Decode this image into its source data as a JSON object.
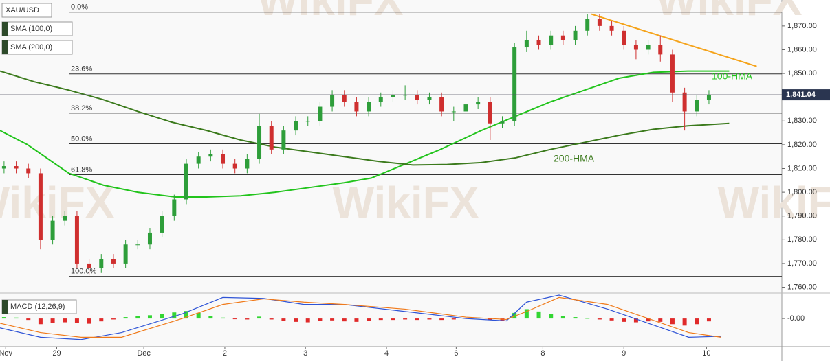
{
  "chart_data": {
    "type": "candlestick",
    "symbol": "XAU/USD",
    "indicators": [
      "SMA (100,0)",
      "SMA (200,0)"
    ],
    "watermark": "WikiFX",
    "xlim": [
      0,
      193
    ],
    "xticks": [
      {
        "value": 1.4,
        "label": "Nov"
      },
      {
        "value": 14,
        "label": "29"
      },
      {
        "value": 35.5,
        "label": "Dec"
      },
      {
        "value": 55.5,
        "label": "2"
      },
      {
        "value": 75.4,
        "label": "3"
      },
      {
        "value": 95.4,
        "label": "4"
      },
      {
        "value": 112.6,
        "label": "6"
      },
      {
        "value": 134,
        "label": "8"
      },
      {
        "value": 154,
        "label": "9"
      },
      {
        "value": 174.4,
        "label": "10"
      }
    ],
    "ylim": [
      1759,
      1879.5
    ],
    "yticks": [
      {
        "value": 1760,
        "label": "1,760.00"
      },
      {
        "value": 1770,
        "label": "1,770.00"
      },
      {
        "value": 1780,
        "label": "1,780.00"
      },
      {
        "value": 1790,
        "label": "1,790.00"
      },
      {
        "value": 1800,
        "label": "1,800.00"
      },
      {
        "value": 1810,
        "label": "1,810.00"
      },
      {
        "value": 1820,
        "label": "1,820.00"
      },
      {
        "value": 1830,
        "label": "1,830.00"
      },
      {
        "value": 1840,
        "label": "1,840.00"
      },
      {
        "value": 1850,
        "label": "1,850.00"
      },
      {
        "value": 1860,
        "label": "1,860.00"
      },
      {
        "value": 1870,
        "label": "1,870.00"
      }
    ],
    "candles": {
      "up_color": "#2e9e3a",
      "down_color": "#cf2f2f",
      "x": [
        1,
        4,
        7,
        10,
        13,
        16,
        19,
        22,
        25,
        28,
        31,
        34,
        37,
        40,
        43,
        46,
        49,
        52,
        55,
        58,
        61,
        64,
        67,
        70,
        73,
        76,
        79,
        82,
        85,
        88,
        91,
        94,
        97,
        100,
        103,
        106,
        109,
        112,
        115,
        118,
        121,
        124,
        127,
        130,
        133,
        136,
        139,
        142,
        145,
        148,
        151,
        154,
        157,
        160,
        163,
        166,
        169,
        172,
        175
      ],
      "open": [
        1810,
        1811,
        1810,
        1808,
        1780,
        1788,
        1790,
        1770,
        1768,
        1772,
        1770,
        1778,
        1778,
        1783,
        1790,
        1797,
        1812,
        1815,
        1816,
        1812,
        1810,
        1814,
        1828,
        1818,
        1826,
        1830,
        1830,
        1836,
        1841,
        1838,
        1834,
        1838,
        1840,
        1841,
        1841,
        1839,
        1840,
        1834,
        1834,
        1837,
        1838,
        1829,
        1830,
        1861,
        1864,
        1862,
        1866,
        1864,
        1868,
        1873,
        1870,
        1868,
        1862,
        1860,
        1862,
        1858,
        1842,
        1834,
        1839
      ],
      "high": [
        1813,
        1813,
        1812,
        1810,
        1790,
        1792,
        1792,
        1772,
        1774,
        1774,
        1780,
        1780,
        1785,
        1792,
        1799,
        1814,
        1817,
        1818,
        1818,
        1814,
        1816,
        1833,
        1830,
        1828,
        1832,
        1832,
        1838,
        1843,
        1843,
        1840,
        1840,
        1842,
        1843,
        1845,
        1843,
        1842,
        1842,
        1836,
        1839,
        1840,
        1840,
        1832,
        1863,
        1868,
        1866,
        1868,
        1868,
        1870,
        1875,
        1875,
        1872,
        1870,
        1864,
        1864,
        1866,
        1860,
        1844,
        1841,
        1843
      ],
      "low": [
        1808,
        1808,
        1806,
        1776,
        1778,
        1786,
        1768,
        1765,
        1766,
        1768,
        1768,
        1776,
        1776,
        1781,
        1788,
        1795,
        1810,
        1813,
        1810,
        1808,
        1808,
        1812,
        1816,
        1816,
        1824,
        1828,
        1828,
        1834,
        1836,
        1832,
        1832,
        1836,
        1838,
        1839,
        1837,
        1837,
        1832,
        1830,
        1832,
        1835,
        1822,
        1827,
        1828,
        1859,
        1860,
        1860,
        1862,
        1862,
        1866,
        1868,
        1866,
        1860,
        1856,
        1858,
        1855,
        1838,
        1826,
        1832,
        1837
      ],
      "close": [
        1811,
        1810,
        1808,
        1780,
        1788,
        1790,
        1770,
        1768,
        1772,
        1770,
        1778,
        1778,
        1783,
        1790,
        1797,
        1812,
        1815,
        1816,
        1812,
        1810,
        1814,
        1828,
        1818,
        1826,
        1830,
        1830,
        1836,
        1841,
        1838,
        1834,
        1838,
        1840,
        1841,
        1841,
        1839,
        1840,
        1834,
        1834,
        1837,
        1838,
        1829,
        1830,
        1861,
        1864,
        1862,
        1866,
        1864,
        1868,
        1873,
        1870,
        1868,
        1862,
        1860,
        1862,
        1858,
        1842,
        1834,
        1839,
        1841
      ]
    },
    "series": [
      {
        "name": "100-HMA",
        "color": "#22c41c",
        "x": [
          0,
          6.8,
          17,
          25.5,
          34,
          43.3,
          51,
          59.4,
          67.9,
          76.4,
          84.9,
          91.7,
          100.2,
          108.7,
          118.8,
          127.3,
          135.8,
          144.3,
          152.8,
          161.3,
          169.8,
          180
        ],
        "values": [
          1826,
          1820,
          1808,
          1803,
          1800,
          1798,
          1798,
          1798.5,
          1800,
          1802,
          1804,
          1806,
          1812,
          1818,
          1826,
          1832,
          1838,
          1843,
          1848,
          1850.5,
          1851,
          1851
        ]
      },
      {
        "name": "200-HMA",
        "color": "#3b7a1c",
        "x": [
          0,
          8.5,
          17,
          25.5,
          34,
          42.4,
          51,
          59.4,
          67.9,
          76.4,
          84.9,
          93.4,
          101.9,
          110.4,
          118.8,
          127.3,
          135.8,
          144.3,
          152.8,
          161.3,
          169.8,
          180
        ],
        "values": [
          1851,
          1846.5,
          1843,
          1839,
          1834,
          1829.5,
          1826,
          1822,
          1819,
          1817,
          1815,
          1813,
          1811.5,
          1811.7,
          1812.5,
          1814.5,
          1818,
          1821,
          1824,
          1826.5,
          1828,
          1829
        ]
      }
    ],
    "trendline": {
      "color": "#f5a31a",
      "x": [
        146,
        186.8
      ],
      "values": [
        1875,
        1853
      ]
    },
    "fib_levels": [
      {
        "label": "0.0%",
        "value": 1875.8
      },
      {
        "label": "23.6%",
        "value": 1849.8
      },
      {
        "label": "38.2%",
        "value": 1833.3
      },
      {
        "label": "50.0%",
        "value": 1820.4
      },
      {
        "label": "61.8%",
        "value": 1807.4
      },
      {
        "label": "100.0%",
        "value": 1764.6
      }
    ],
    "last_price": {
      "value": 1841.04,
      "label": "1,841.04"
    },
    "macd": {
      "title": "MACD (12,26,9)",
      "ylim": [
        -6,
        5
      ],
      "yticks": [
        {
          "value": 0,
          "label": "-0.00"
        }
      ],
      "histogram": [
        0.3,
        0.2,
        -0.3,
        -1.2,
        -1.0,
        -0.8,
        -1.0,
        -1.1,
        -0.6,
        -0.2,
        0.3,
        0.5,
        0.7,
        1.0,
        1.3,
        1.6,
        1.2,
        0.6,
        0.2,
        -0.1,
        -0.2,
        0.4,
        -0.2,
        -0.5,
        -0.7,
        -0.8,
        -0.5,
        -0.4,
        -0.6,
        -0.7,
        -0.5,
        -0.3,
        -0.3,
        -0.2,
        -0.3,
        -0.2,
        -0.3,
        -0.2,
        0.1,
        0.2,
        -0.3,
        -0.4,
        1.2,
        2.0,
        1.5,
        1.0,
        0.6,
        0.3,
        0.1,
        -0.2,
        -0.4,
        -0.7,
        -0.8,
        -0.6,
        -0.7,
        -1.2,
        -1.5,
        -1.2,
        -0.6
      ],
      "up_color": "#33d633",
      "down_color": "#e02a2a",
      "lines": [
        {
          "color": "#2f54d6",
          "x": [
            0,
            10,
            20,
            30,
            45,
            55,
            65,
            75,
            85,
            100,
            115,
            125,
            130,
            138,
            150,
            160,
            170,
            178
          ],
          "values": [
            -2,
            -4,
            -4.5,
            -3,
            1,
            4.5,
            4.3,
            3,
            3,
            1.5,
            0,
            -0.5,
            3.5,
            5,
            2,
            -1,
            -4,
            -3.8
          ]
        },
        {
          "color": "#f07a1a",
          "x": [
            0,
            10,
            20,
            30,
            45,
            55,
            65,
            75,
            85,
            100,
            115,
            125,
            130,
            138,
            150,
            160,
            170,
            178
          ],
          "values": [
            -1,
            -3,
            -4,
            -4,
            0,
            3,
            4.2,
            3.5,
            3,
            2,
            0.3,
            -0.2,
            1.5,
            4.5,
            3,
            0,
            -3,
            -4
          ]
        }
      ]
    }
  }
}
